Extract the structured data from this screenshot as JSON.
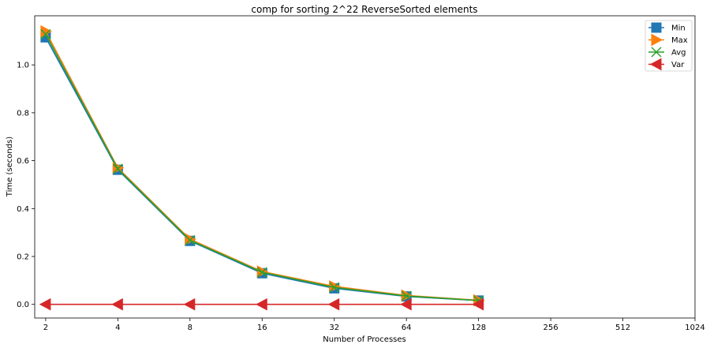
{
  "chart_data": {
    "type": "line",
    "title": "comp for sorting 2^22 ReverseSorted elements",
    "xlabel": "Number of Processes",
    "ylabel": "Time (seconds)",
    "x_scale": "log2",
    "x_ticks": [
      2,
      4,
      8,
      16,
      32,
      64,
      128,
      256,
      512,
      1024
    ],
    "y_ticks": [
      0.0,
      0.2,
      0.4,
      0.6,
      0.8,
      1.0
    ],
    "xlim": [
      1.8,
      1024
    ],
    "ylim": [
      -0.057,
      1.205
    ],
    "grid": false,
    "legend_position": "top-right",
    "x": [
      2,
      4,
      8,
      16,
      32,
      64,
      128
    ],
    "series": [
      {
        "name": "Min",
        "color": "#1f77b4",
        "marker": "square",
        "values": [
          1.115,
          0.562,
          0.265,
          0.13,
          0.067,
          0.033,
          0.016
        ]
      },
      {
        "name": "Max",
        "color": "#ff7f0e",
        "marker": "triangle-right",
        "values": [
          1.14,
          0.57,
          0.272,
          0.137,
          0.075,
          0.037,
          0.017
        ]
      },
      {
        "name": "Avg",
        "color": "#2ca02c",
        "marker": "x",
        "values": [
          1.128,
          0.566,
          0.268,
          0.134,
          0.071,
          0.035,
          0.016
        ]
      },
      {
        "name": "Var",
        "color": "#d62728",
        "marker": "triangle-left",
        "values": [
          0.0,
          0.0,
          0.0,
          0.0,
          0.0,
          0.0,
          0.0
        ]
      }
    ]
  }
}
